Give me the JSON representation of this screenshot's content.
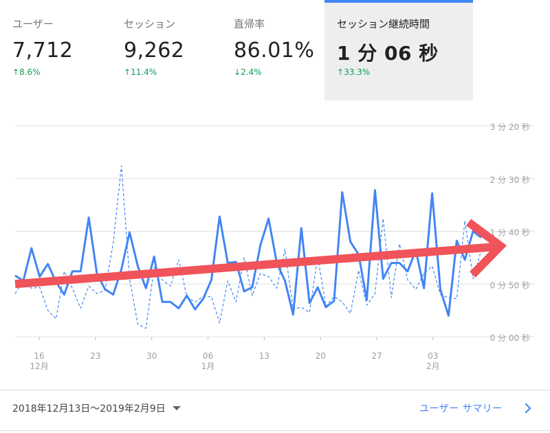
{
  "metrics": [
    {
      "label": "ユーザー",
      "value": "7,712",
      "change": "8.6%",
      "direction": "up"
    },
    {
      "label": "セッション",
      "value": "9,262",
      "change": "11.4%",
      "direction": "up"
    },
    {
      "label": "直帰率",
      "value": "86.01%",
      "change": "2.4%",
      "direction": "down"
    },
    {
      "label": "セッション継続時間",
      "value": "1 分 06 秒",
      "change": "33.3%",
      "direction": "up",
      "active": true
    }
  ],
  "arrows": {
    "up": "↑",
    "down": "↓"
  },
  "colors": {
    "primary_series": "#4285f4",
    "secondary_series": "#4285f4",
    "trend_arrow": "#f0535a",
    "positive": "#0f9d58",
    "grid": "#e0e0e0",
    "accent_tab": "#4285f4"
  },
  "chart_data": {
    "type": "line",
    "yaxis": {
      "unit": "seconds",
      "min": 0,
      "max": 200,
      "ticks": [
        0,
        50,
        100,
        150,
        200
      ],
      "tick_labels": [
        "0 分 00 秒",
        "0 分 50 秒",
        "1 分 40 秒",
        "2 分 30 秒",
        "3 分 20 秒"
      ]
    },
    "xaxis": {
      "start_date": "2018-12-13",
      "end_date": "2019-02-09",
      "ticks": [
        {
          "date": "2018-12-16",
          "label": "16",
          "sublabel": "12月"
        },
        {
          "date": "2018-12-23",
          "label": "23",
          "sublabel": ""
        },
        {
          "date": "2018-12-30",
          "label": "30",
          "sublabel": ""
        },
        {
          "date": "2019-01-06",
          "label": "06",
          "sublabel": "1月"
        },
        {
          "date": "2019-01-13",
          "label": "13",
          "sublabel": ""
        },
        {
          "date": "2019-01-20",
          "label": "20",
          "sublabel": ""
        },
        {
          "date": "2019-01-27",
          "label": "27",
          "sublabel": ""
        },
        {
          "date": "2019-02-03",
          "label": "03",
          "sublabel": "2月"
        }
      ]
    },
    "grid": true,
    "series": [
      {
        "style": "solid",
        "values": [
          58,
          53,
          84,
          57,
          69,
          52,
          40,
          62,
          62,
          113,
          60,
          45,
          40,
          64,
          99,
          67,
          46,
          76,
          33,
          33,
          27,
          39,
          26,
          36,
          54,
          114,
          70,
          71,
          43,
          47,
          87,
          112,
          70,
          53,
          21,
          103,
          32,
          47,
          28,
          34,
          137,
          90,
          78,
          35,
          139,
          55,
          70,
          70,
          62,
          82,
          46,
          136,
          45,
          20,
          91,
          73,
          100,
          94
        ]
      },
      {
        "style": "dashed",
        "values": [
          41,
          53,
          46,
          47,
          25,
          17,
          62,
          46,
          27,
          48,
          41,
          44,
          89,
          162,
          55,
          12,
          8,
          66,
          54,
          48,
          73,
          38,
          33,
          38,
          38,
          13,
          53,
          33,
          75,
          39,
          60,
          57,
          46,
          83,
          26,
          28,
          23,
          76,
          29,
          38,
          33,
          22,
          63,
          30,
          41,
          112,
          37,
          88,
          54,
          45,
          60,
          67,
          40,
          37,
          36,
          110,
          55,
          82
        ]
      }
    ],
    "trend_arrow": {
      "from_value": 50,
      "to_value": 86
    }
  },
  "footer": {
    "date_range": "2018年12月13日～2019年2月9日",
    "summary_link": "ユーザー サマリー"
  }
}
